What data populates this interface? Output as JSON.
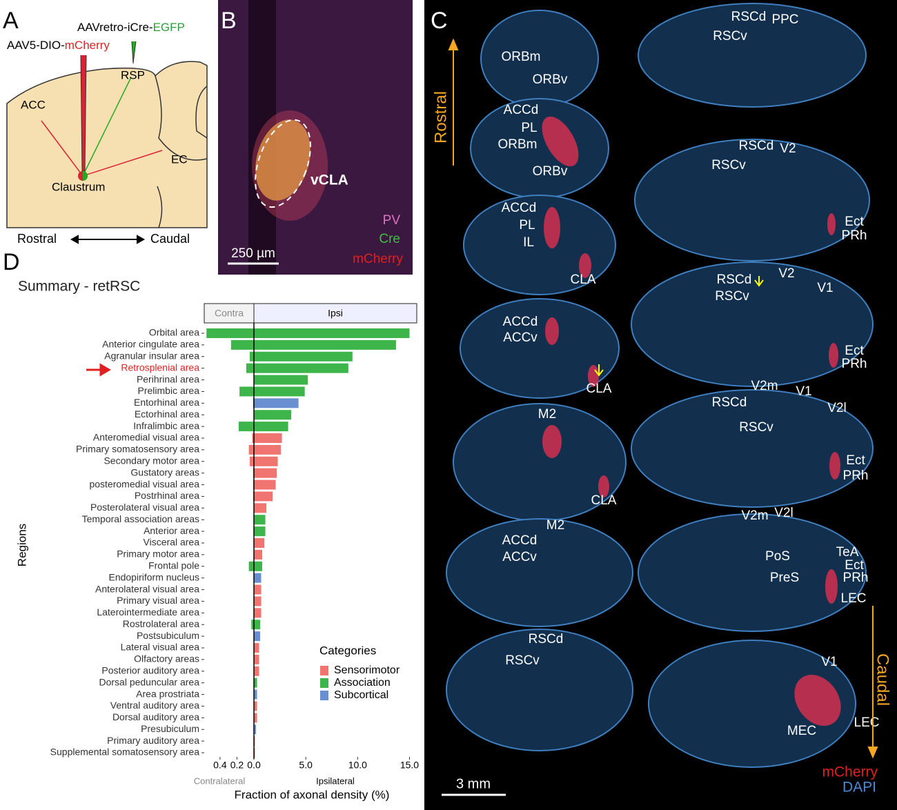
{
  "panel_a": {
    "letter": "A",
    "injection_1_prefix": "AAVretro-iCre-",
    "injection_1_marker": "EGFP",
    "injection_2_prefix": "AAV5-DIO-",
    "injection_2_marker": "mCherry",
    "labels": [
      "RSP",
      "ACC",
      "EC",
      "Claustrum"
    ],
    "axis": [
      "Rostral",
      "Caudal"
    ]
  },
  "panel_b": {
    "letter": "B",
    "region": "vCLA",
    "channels": [
      "PV",
      "Cre",
      "mCherry"
    ],
    "scale_bar": "250 µm"
  },
  "panel_c": {
    "letter": "C",
    "labels": [
      "ORBm",
      "ORBv",
      "ACCd",
      "PL",
      "ORBm",
      "ORBv",
      "ACCd",
      "PL",
      "IL",
      "CLA",
      "ACCd",
      "ACCv",
      "CLA",
      "M2",
      "CLA",
      "M2",
      "ACCd",
      "ACCv",
      "RSCd",
      "RSCv",
      "RSCd",
      "PPC",
      "RSCv",
      "RSCd",
      "V2",
      "RSCv",
      "Ect",
      "PRh",
      "RSCd",
      "V2",
      "V1",
      "RSCv",
      "Ect",
      "PRh",
      "V2m",
      "V1",
      "RSCd",
      "V2l",
      "RSCv",
      "Ect",
      "PRh",
      "V2m",
      "V2l",
      "TeA",
      "Ect",
      "PRh",
      "PoS",
      "PreS",
      "LEC",
      "V1",
      "LEC",
      "MEC"
    ],
    "rostral": "Rostral",
    "caudal": "Caudal",
    "scale_bar": "3 mm",
    "channels": [
      "mCherry",
      "DAPI"
    ]
  },
  "chart_data": {
    "type": "diverging_bar",
    "panel_letter": "D",
    "title": "Summary - retRSC",
    "facets": [
      "Contra",
      "Ipsi"
    ],
    "x_sublabels": [
      "Contralateral",
      "Ipsilateral"
    ],
    "xlabel": "Fraction of axonal density (%)",
    "ylabel": "Regions",
    "legend_title": "Categories",
    "highlight": 3,
    "categories": [
      "Orbital area",
      "Anterior cingulate area",
      "Agranular insular area",
      "Retrosplenial area",
      "Perihrinal area",
      "Prelimbic area",
      "Entorhinal area",
      "Ectorhinal area",
      "Infralimbic area",
      "Anteromedial visual area",
      "Primary somatosensory area",
      "Secondary motor area",
      "Gustatory areas",
      "posteromedial visual area",
      "Postrhinal area",
      "Posterolateral visual area",
      "Temporal association areas",
      "Anterior area",
      "Visceral area",
      "Primary motor area",
      "Frontal pole",
      "Endopiriform nucleus",
      "Anterolateral visual area",
      "Primary visual area",
      "Laterointermediate area",
      "Rostrolateral area",
      "Postsubiculum",
      "Lateral visual area",
      "Olfactory areas",
      "Posterior auditory area",
      "Dorsal peduncular area",
      "Area prostriata",
      "Ventral auditory area",
      "Dorsal auditory area",
      "Presubiculum",
      "Primary auditory area",
      "Supplemental somatosensory area"
    ],
    "series": [
      {
        "name": "Sensorimotor",
        "color": "#f07470",
        "values": [
          null,
          null,
          null,
          null,
          null,
          null,
          null,
          null,
          null,
          2.7,
          2.6,
          2.3,
          2.2,
          2.1,
          1.8,
          1.2,
          null,
          null,
          1.0,
          0.8,
          null,
          null,
          0.7,
          0.7,
          0.7,
          null,
          null,
          0.5,
          0.5,
          0.5,
          null,
          null,
          0.3,
          0.3,
          null,
          0.1,
          0.1
        ],
        "contra_values": [
          null,
          null,
          null,
          null,
          null,
          null,
          null,
          null,
          null,
          0.02,
          0.06,
          0.05,
          0.01,
          0.01,
          0.01,
          0,
          null,
          null,
          0,
          0,
          null,
          null,
          0,
          0,
          0,
          null,
          null,
          0,
          0,
          0,
          null,
          null,
          0,
          0,
          null,
          0,
          0
        ]
      },
      {
        "name": "Association",
        "color": "#3db54a",
        "values": [
          15.0,
          13.7,
          9.5,
          9.1,
          5.2,
          4.9,
          null,
          3.6,
          3.3,
          null,
          null,
          null,
          null,
          null,
          null,
          null,
          1.1,
          1.1,
          null,
          null,
          0.8,
          null,
          null,
          null,
          null,
          0.6,
          null,
          null,
          null,
          null,
          0.3,
          null,
          null,
          null,
          null,
          null,
          null
        ],
        "contra_values": [
          0.56,
          0.27,
          0.05,
          0.09,
          0,
          0.17,
          null,
          0,
          0.18,
          null,
          null,
          null,
          null,
          null,
          null,
          null,
          0,
          0,
          null,
          null,
          0.06,
          null,
          null,
          null,
          null,
          0.03,
          null,
          null,
          null,
          null,
          0,
          null,
          null,
          null,
          null,
          null,
          null
        ]
      },
      {
        "name": "Subcortical",
        "color": "#6a8fd0",
        "values": [
          null,
          null,
          null,
          null,
          null,
          null,
          4.3,
          null,
          null,
          null,
          null,
          null,
          null,
          null,
          null,
          null,
          null,
          null,
          null,
          null,
          null,
          0.7,
          null,
          null,
          null,
          null,
          0.6,
          null,
          null,
          null,
          null,
          0.3,
          null,
          null,
          0.2,
          null,
          null
        ],
        "contra_values": [
          null,
          null,
          null,
          null,
          null,
          null,
          0.01,
          null,
          null,
          null,
          null,
          null,
          null,
          null,
          null,
          null,
          null,
          null,
          null,
          null,
          null,
          0,
          null,
          null,
          null,
          null,
          0,
          null,
          null,
          null,
          null,
          0,
          null,
          null,
          0,
          null,
          null
        ]
      }
    ],
    "xlim": [
      0,
      15.7
    ],
    "xticks": [
      {
        "value": 0,
        "label": "0.0"
      },
      {
        "value": 5,
        "label": "5.0"
      },
      {
        "value": 10,
        "label": "10.0"
      },
      {
        "value": 15,
        "label": "15.0"
      }
    ],
    "contra_xlim": [
      0,
      0.57
    ],
    "contra_xticks": [
      0.4,
      0.2
    ],
    "grid": false
  }
}
